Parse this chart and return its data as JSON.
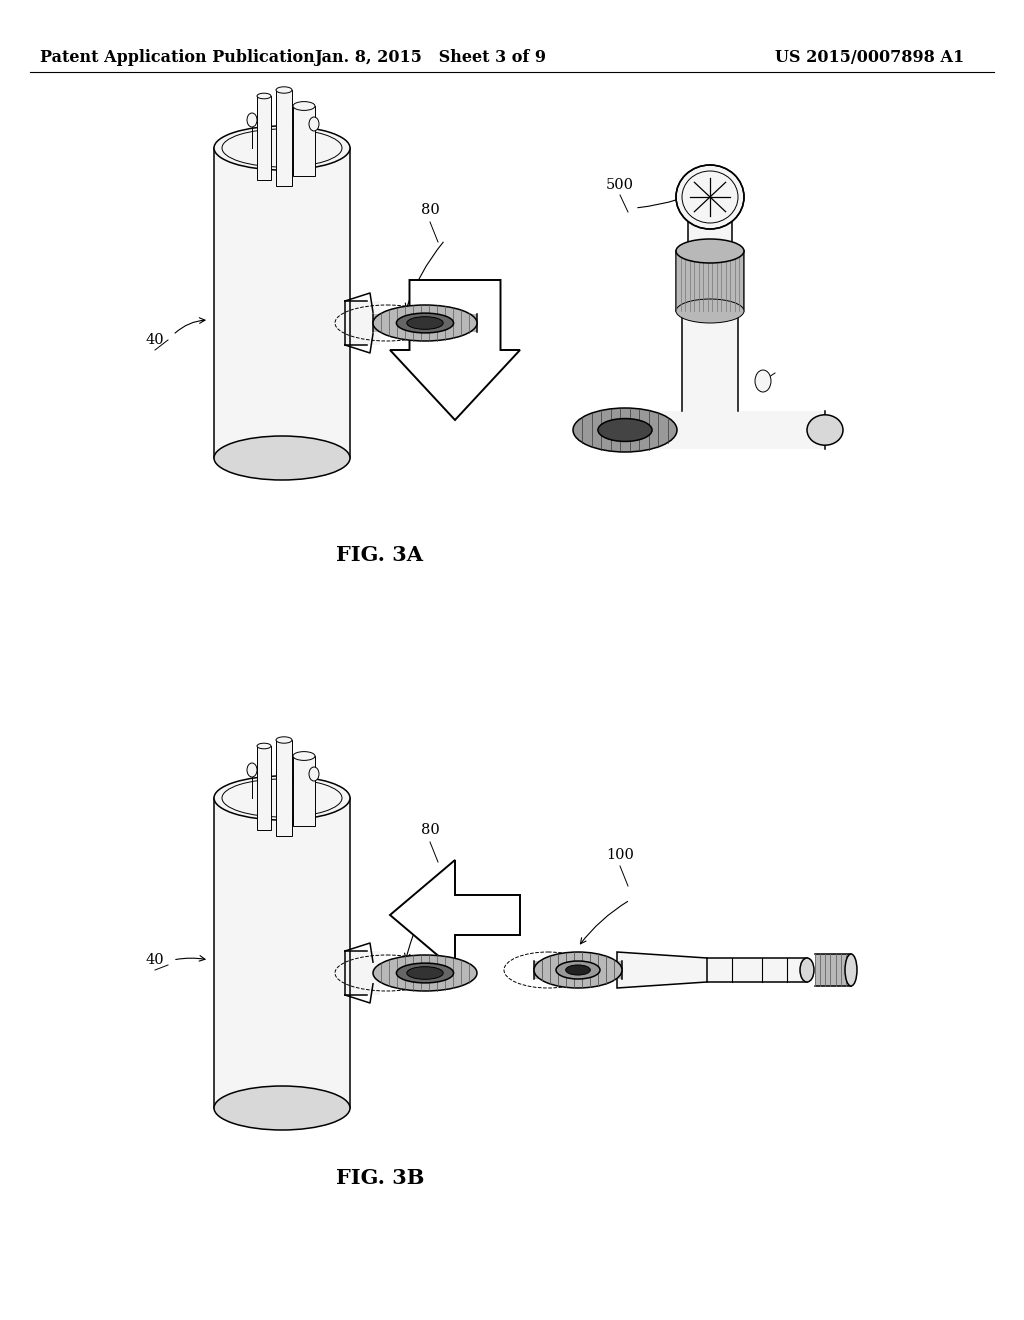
{
  "background_color": "#ffffff",
  "header": {
    "left_text": "Patent Application Publication",
    "center_text": "Jan. 8, 2015   Sheet 3 of 9",
    "right_text": "US 2015/0007898 A1",
    "fontsize": 11.5
  },
  "fig3a_label": "FIG. 3A",
  "fig3b_label": "FIG. 3B",
  "label_fontsize": 15,
  "annotation_fontsize": 10.5
}
